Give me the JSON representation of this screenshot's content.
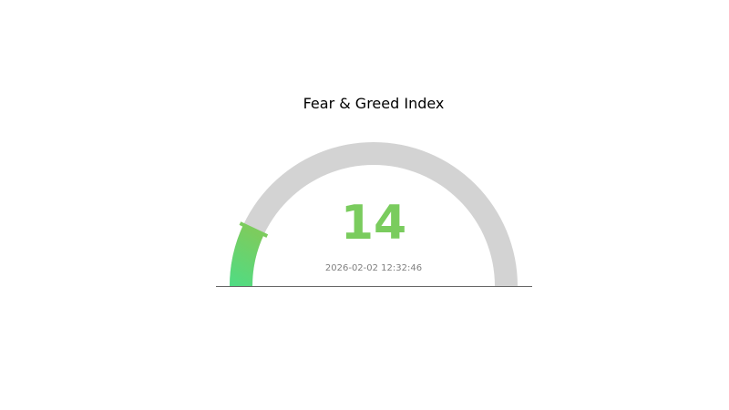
{
  "chart_data": {
    "type": "gauge",
    "title": "Fear & Greed Index",
    "value": 14,
    "range": [
      0,
      100
    ],
    "timestamp": "2026-02-02 12:32:46",
    "colors": {
      "track": "#d3d3d3",
      "fill_start": "#4fdc84",
      "fill_end": "#7ccc5e",
      "value_text": "#7acc5e",
      "timestamp_text": "#808080",
      "baseline": "#666666"
    }
  }
}
